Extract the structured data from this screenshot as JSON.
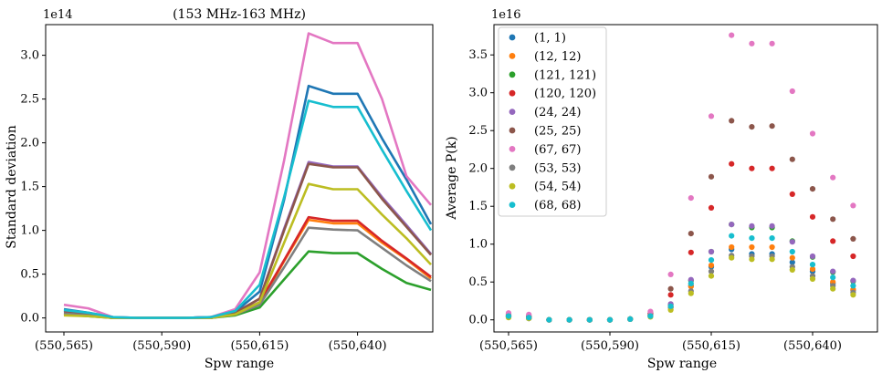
{
  "figure": {
    "left_panel_title": "(153 MHz-163 MHz)"
  },
  "chart_data": [
    {
      "type": "line",
      "title": "(153 MHz-163 MHz)",
      "xlabel": "Spw range",
      "ylabel": "Standard deviation",
      "offset_label": "1e14",
      "x_ticks": [
        "(550,565)",
        "(550,590)",
        "(550,615)",
        "(550,640)"
      ],
      "y_ticks": [
        "0.0",
        "0.5",
        "1.0",
        "1.5",
        "2.0",
        "2.5",
        "3.0"
      ],
      "ylim": [
        -0.16,
        3.35
      ],
      "grid": false,
      "series": [
        {
          "name": "(1, 1)",
          "color": "#1f77b4",
          "values": [
            0.1,
            0.06,
            0.01,
            0.0,
            0.0,
            0.0,
            0.01,
            0.07,
            0.3,
            1.35,
            2.65,
            2.56,
            2.56,
            2.05,
            1.58,
            1.07
          ]
        },
        {
          "name": "(12, 12)",
          "color": "#ff7f0e",
          "values": [
            0.05,
            0.03,
            0.0,
            0.0,
            0.0,
            0.0,
            0.0,
            0.05,
            0.15,
            0.65,
            1.12,
            1.08,
            1.08,
            0.86,
            0.67,
            0.45
          ]
        },
        {
          "name": "(121, 121)",
          "color": "#2ca02c",
          "values": [
            0.04,
            0.02,
            0.0,
            0.0,
            0.0,
            0.0,
            0.0,
            0.03,
            0.12,
            0.44,
            0.76,
            0.74,
            0.74,
            0.56,
            0.4,
            0.32
          ]
        },
        {
          "name": "(120, 120)",
          "color": "#d62728",
          "values": [
            0.06,
            0.03,
            0.0,
            0.0,
            0.0,
            0.0,
            0.0,
            0.05,
            0.18,
            0.66,
            1.15,
            1.11,
            1.11,
            0.88,
            0.68,
            0.47
          ]
        },
        {
          "name": "(24, 24)",
          "color": "#9467bd",
          "values": [
            0.08,
            0.05,
            0.0,
            0.0,
            0.0,
            0.0,
            0.01,
            0.06,
            0.22,
            1.02,
            1.78,
            1.73,
            1.73,
            1.38,
            1.06,
            0.73
          ]
        },
        {
          "name": "(25, 25)",
          "color": "#8c564b",
          "values": [
            0.08,
            0.05,
            0.0,
            0.0,
            0.0,
            0.0,
            0.01,
            0.06,
            0.22,
            1.0,
            1.76,
            1.72,
            1.72,
            1.36,
            1.04,
            0.72
          ]
        },
        {
          "name": "(67, 67)",
          "color": "#e377c2",
          "values": [
            0.15,
            0.11,
            0.01,
            0.0,
            0.0,
            0.0,
            0.01,
            0.1,
            0.52,
            1.8,
            3.25,
            3.14,
            3.14,
            2.5,
            1.62,
            1.29
          ]
        },
        {
          "name": "(53, 53)",
          "color": "#7f7f7f",
          "values": [
            0.05,
            0.03,
            0.0,
            0.0,
            0.0,
            0.0,
            0.0,
            0.04,
            0.15,
            0.58,
            1.03,
            1.01,
            1.0,
            0.8,
            0.6,
            0.42
          ]
        },
        {
          "name": "(54, 54)",
          "color": "#bcbd22",
          "values": [
            0.03,
            0.02,
            0.0,
            0.0,
            0.0,
            0.0,
            0.0,
            0.04,
            0.18,
            0.86,
            1.53,
            1.47,
            1.47,
            1.18,
            0.91,
            0.61
          ]
        },
        {
          "name": "(68, 68)",
          "color": "#17becf",
          "values": [
            0.09,
            0.06,
            0.01,
            0.0,
            0.0,
            0.0,
            0.01,
            0.08,
            0.38,
            1.38,
            2.48,
            2.41,
            2.41,
            1.92,
            1.45,
            1.0
          ]
        }
      ]
    },
    {
      "type": "scatter",
      "title": "",
      "xlabel": "Spw range",
      "ylabel": "Average P(k)",
      "offset_label": "1e16",
      "x_ticks": [
        "(550,565)",
        "(550,590)",
        "(550,615)",
        "(550,640)"
      ],
      "y_ticks": [
        "0.0",
        "0.5",
        "1.0",
        "1.5",
        "2.0",
        "2.5",
        "3.0",
        "3.5"
      ],
      "ylim": [
        -0.16,
        3.9
      ],
      "grid": false,
      "legend_position": "top-left",
      "series": [
        {
          "name": "(1, 1)",
          "color": "#1f77b4",
          "values": [
            0.04,
            0.02,
            0.0,
            0.0,
            0.0,
            0.0,
            0.01,
            0.05,
            0.17,
            0.45,
            0.7,
            0.93,
            0.87,
            0.87,
            0.76,
            0.64,
            0.48,
            0.39
          ]
        },
        {
          "name": "(12, 12)",
          "color": "#ff7f0e",
          "values": [
            0.04,
            0.02,
            0.0,
            0.0,
            0.0,
            0.0,
            0.01,
            0.05,
            0.17,
            0.44,
            0.72,
            0.96,
            0.96,
            0.96,
            0.82,
            0.67,
            0.5,
            0.4
          ]
        },
        {
          "name": "(121, 121)",
          "color": "#2ca02c",
          "values": [
            0.05,
            0.03,
            0.0,
            0.0,
            0.0,
            0.0,
            0.01,
            0.06,
            0.2,
            0.52,
            0.9,
            1.26,
            1.22,
            1.22,
            1.04,
            0.83,
            0.63,
            0.51
          ]
        },
        {
          "name": "(120, 120)",
          "color": "#d62728",
          "values": [
            0.06,
            0.04,
            0.0,
            0.0,
            0.0,
            0.0,
            0.01,
            0.08,
            0.33,
            0.89,
            1.48,
            2.06,
            2.0,
            2.0,
            1.66,
            1.36,
            1.04,
            0.84
          ]
        },
        {
          "name": "(24, 24)",
          "color": "#9467bd",
          "values": [
            0.05,
            0.03,
            0.0,
            0.0,
            0.0,
            0.0,
            0.01,
            0.06,
            0.21,
            0.53,
            0.9,
            1.26,
            1.24,
            1.24,
            1.03,
            0.84,
            0.64,
            0.52
          ]
        },
        {
          "name": "(25, 25)",
          "color": "#8c564b",
          "values": [
            0.07,
            0.05,
            0.0,
            0.0,
            0.0,
            0.0,
            0.01,
            0.09,
            0.41,
            1.14,
            1.89,
            2.63,
            2.55,
            2.56,
            2.12,
            1.73,
            1.33,
            1.07
          ]
        },
        {
          "name": "(67, 67)",
          "color": "#e377c2",
          "values": [
            0.09,
            0.07,
            0.0,
            0.0,
            0.0,
            0.0,
            0.01,
            0.11,
            0.6,
            1.61,
            2.69,
            3.76,
            3.65,
            3.65,
            3.02,
            2.46,
            1.88,
            1.51
          ]
        },
        {
          "name": "(53, 53)",
          "color": "#7f7f7f",
          "values": [
            0.04,
            0.02,
            0.0,
            0.0,
            0.0,
            0.0,
            0.01,
            0.05,
            0.16,
            0.38,
            0.64,
            0.85,
            0.84,
            0.84,
            0.7,
            0.58,
            0.45,
            0.36
          ]
        },
        {
          "name": "(54, 54)",
          "color": "#bcbd22",
          "values": [
            0.03,
            0.02,
            0.0,
            0.0,
            0.0,
            0.0,
            0.01,
            0.04,
            0.13,
            0.35,
            0.58,
            0.82,
            0.8,
            0.8,
            0.66,
            0.54,
            0.41,
            0.33
          ]
        },
        {
          "name": "(68, 68)",
          "color": "#17becf",
          "values": [
            0.05,
            0.03,
            0.0,
            0.0,
            0.0,
            0.0,
            0.01,
            0.05,
            0.18,
            0.48,
            0.79,
            1.11,
            1.08,
            1.08,
            0.9,
            0.73,
            0.56,
            0.45
          ]
        }
      ]
    }
  ]
}
